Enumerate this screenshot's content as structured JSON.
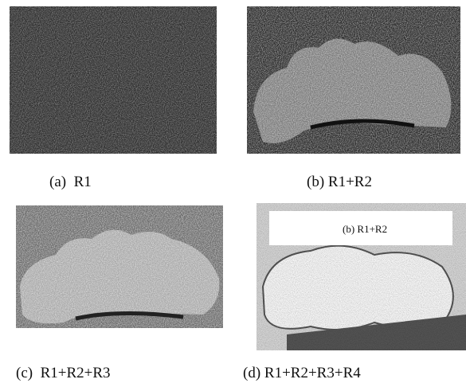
{
  "figure": {
    "panels": [
      {
        "caption": "(a)  R1"
      },
      {
        "caption": "(b) R1+R2"
      },
      {
        "caption": "(c)  R1+R2+R3"
      },
      {
        "caption": "(d) R1+R2+R3+R4",
        "overlay": "(b) R1+R2"
      }
    ]
  }
}
